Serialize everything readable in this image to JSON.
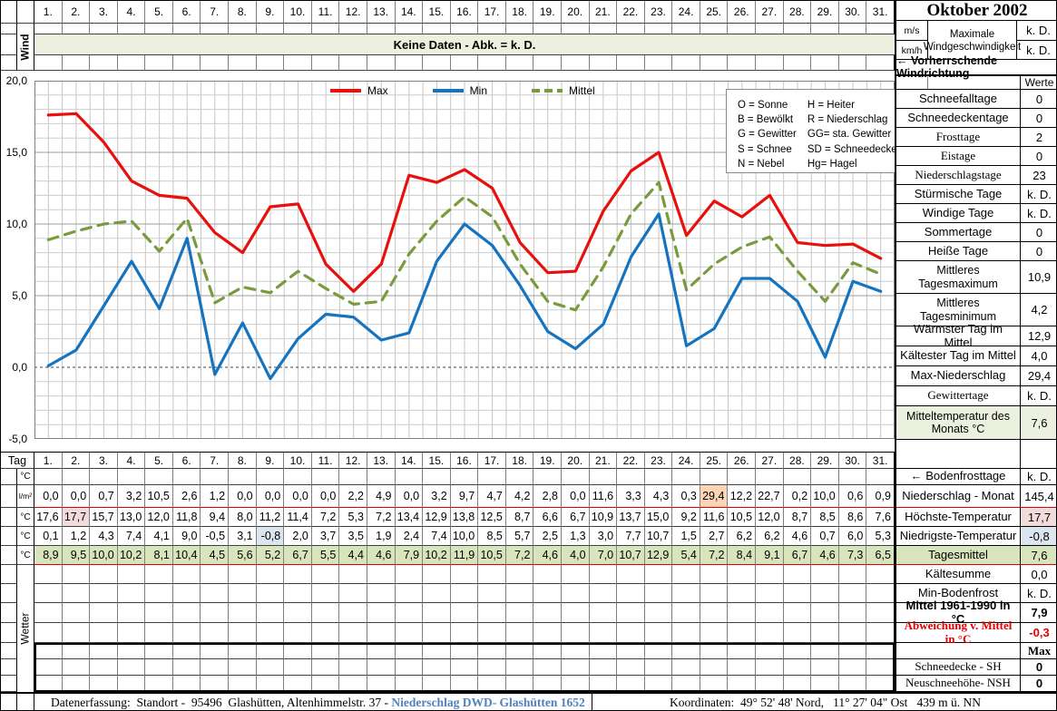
{
  "header": {
    "title": "Oktober 2002",
    "days": [
      "1.",
      "2.",
      "3.",
      "4.",
      "5.",
      "6.",
      "7.",
      "8.",
      "9.",
      "10.",
      "11.",
      "12.",
      "13.",
      "14.",
      "15.",
      "16.",
      "17.",
      "18.",
      "19.",
      "20.",
      "21.",
      "22.",
      "23.",
      "24.",
      "25.",
      "26.",
      "27.",
      "28.",
      "29.",
      "30.",
      "31."
    ]
  },
  "wind_section": {
    "label": "Wind",
    "banner": "Keine Daten - Abk. = k. D.",
    "unit_ms": "m/s",
    "unit_kmh": "km/h",
    "max_wind_label_1": "Maximale",
    "max_wind_label_2": "Windgeschwindigkeit",
    "max_wind_ms": "k. D.",
    "max_wind_kmh": "k. D.",
    "direction_label": "← Vorherrschende Windrichtung"
  },
  "chart_data": {
    "type": "line",
    "x": [
      1,
      2,
      3,
      4,
      5,
      6,
      7,
      8,
      9,
      10,
      11,
      12,
      13,
      14,
      15,
      16,
      17,
      18,
      19,
      20,
      21,
      22,
      23,
      24,
      25,
      26,
      27,
      28,
      29,
      30,
      31
    ],
    "series": [
      {
        "name": "Max",
        "color": "#e8100c",
        "dashed": false,
        "values": [
          17.6,
          17.7,
          15.7,
          13.0,
          12.0,
          11.8,
          9.4,
          8.0,
          11.2,
          11.4,
          7.2,
          5.3,
          7.2,
          13.4,
          12.9,
          13.8,
          12.5,
          8.7,
          6.6,
          6.7,
          10.9,
          13.7,
          15.0,
          9.2,
          11.6,
          10.5,
          12.0,
          8.7,
          8.5,
          8.6,
          7.6
        ]
      },
      {
        "name": "Min",
        "color": "#1673be",
        "dashed": false,
        "values": [
          0.1,
          1.2,
          4.3,
          7.4,
          4.1,
          9.0,
          -0.5,
          3.1,
          -0.8,
          2.0,
          3.7,
          3.5,
          1.9,
          2.4,
          7.4,
          10.0,
          8.5,
          5.7,
          2.5,
          1.3,
          3.0,
          7.7,
          10.7,
          1.5,
          2.7,
          6.2,
          6.2,
          4.6,
          0.7,
          6.0,
          5.3
        ]
      },
      {
        "name": "Mittel",
        "color": "#7a9b3d",
        "dashed": true,
        "values": [
          8.9,
          9.5,
          10.0,
          10.2,
          8.1,
          10.4,
          4.5,
          5.6,
          5.2,
          6.7,
          5.5,
          4.4,
          4.6,
          7.9,
          10.2,
          11.9,
          10.5,
          7.2,
          4.6,
          4.0,
          7.0,
          10.7,
          12.9,
          5.4,
          7.2,
          8.4,
          9.1,
          6.7,
          4.6,
          7.3,
          6.5
        ]
      }
    ],
    "ylim": [
      -5,
      20
    ],
    "yticks": [
      {
        "label": "20,0",
        "v": 20
      },
      {
        "label": "15,0",
        "v": 15
      },
      {
        "label": "10,0",
        "v": 10
      },
      {
        "label": "5,0",
        "v": 5
      },
      {
        "label": "0,0",
        "v": 0
      },
      {
        "label": "-5,0",
        "v": -5
      }
    ],
    "grid": true,
    "legend_position": "top"
  },
  "weather_legend": {
    "left": [
      "O = Sonne",
      "B = Bewölkt",
      "G = Gewitter",
      "S = Schnee",
      "N = Nebel"
    ],
    "right": [
      "H = Heiter",
      "R = Niederschlag",
      "GG= sta. Gewitter",
      "SD = Schneedecke",
      "Hg= Hagel"
    ]
  },
  "right_panel": {
    "values_header": "Werte",
    "stats_upper": [
      {
        "label": "Schneefalltage",
        "value": "0"
      },
      {
        "label": "Schneedeckentage",
        "value": "0"
      },
      {
        "label": "Frosttage",
        "value": "2",
        "serif": true
      },
      {
        "label": "Eistage",
        "value": "0",
        "serif": true
      },
      {
        "label": "Niederschlagstage",
        "value": "23",
        "serif": true
      },
      {
        "label": "Stürmische Tage",
        "value": "k. D."
      },
      {
        "label": "Windige Tage",
        "value": "k. D."
      },
      {
        "label": "Sommertage",
        "value": "0"
      },
      {
        "label": "Heiße Tage",
        "value": "0"
      },
      {
        "label": "Mittleres Tagesmaximum",
        "value": "10,9",
        "tall": true
      },
      {
        "label": "Mittleres Tagesminimum",
        "value": "4,2",
        "tall": true
      },
      {
        "label": "Wärmster Tag im Mittel",
        "value": "12,9"
      },
      {
        "label": "Kältester Tag im Mittel",
        "value": "4,0"
      },
      {
        "label": "Max-Niederschlag",
        "value": "29,4"
      },
      {
        "label": "Gewittertage",
        "value": "k. D.",
        "serif": true
      },
      {
        "label": "Mitteltemperatur des Monats °C",
        "value": "7,6",
        "tall": true,
        "label_bg": "#ebf1de",
        "value_bg": "#ebf1de"
      }
    ],
    "stats_lower": [
      {
        "label": "← Bodenfrosttage",
        "value": "k. D."
      },
      {
        "label": "Niederschlag - Monat",
        "value": "145,4",
        "redline": true
      },
      {
        "label": "Höchste-Temperatur",
        "value": "17,7",
        "value_bg": "#f2dcdb"
      },
      {
        "label": "Niedrigste-Temperatur",
        "value": "-0,8",
        "value_bg": "#dce6f1"
      },
      {
        "label": "Tagesmittel",
        "value": "7,6",
        "label_bg": "#d7e4bc",
        "value_bg": "#d7e4bc",
        "redline": true
      },
      {
        "label": "Kältesumme",
        "value": "0,0"
      },
      {
        "label": "Min-Bodenfrost",
        "value": "k. D."
      },
      {
        "label": "Mittel 1961-1990 in °C",
        "value": "7,9",
        "bold": true
      },
      {
        "label": "Abweichung v. Mittel in °C",
        "value": "-0,3",
        "serif": true,
        "bold": true,
        "red": true
      },
      {
        "label": "",
        "value": "Max",
        "serif": true,
        "bold": true
      },
      {
        "label": "Schneedecke -  SH",
        "value": "0",
        "serif": true,
        "bold_value": true
      },
      {
        "label": "Neuschneehöhe- NSH",
        "value": "0",
        "serif": true,
        "bold_value": true
      }
    ]
  },
  "table": {
    "day_label": "Tag",
    "unit_temp": "°C",
    "unit_precip": "l/m²",
    "wetter_label": "Wetter",
    "precip": {
      "values": [
        "0,0",
        "0,0",
        "0,7",
        "3,2",
        "10,5",
        "2,6",
        "1,2",
        "0,0",
        "0,0",
        "0,0",
        "0,0",
        "2,2",
        "4,9",
        "0,0",
        "3,2",
        "9,7",
        "4,7",
        "4,2",
        "2,8",
        "0,0",
        "11,6",
        "3,3",
        "4,3",
        "0,3",
        "29,4",
        "12,2",
        "22,7",
        "0,2",
        "10,0",
        "0,6",
        "0,9"
      ],
      "highlight_index": 24,
      "highlight_color": "#fbd5b5"
    },
    "tmax": {
      "values": [
        "17,6",
        "17,7",
        "15,7",
        "13,0",
        "12,0",
        "11,8",
        "9,4",
        "8,0",
        "11,2",
        "11,4",
        "7,2",
        "5,3",
        "7,2",
        "13,4",
        "12,9",
        "13,8",
        "12,5",
        "8,7",
        "6,6",
        "6,7",
        "10,9",
        "13,7",
        "15,0",
        "9,2",
        "11,6",
        "10,5",
        "12,0",
        "8,7",
        "8,5",
        "8,6",
        "7,6"
      ],
      "highlight_index": 1,
      "highlight_color": "#f2dcdb"
    },
    "tmin": {
      "values": [
        "0,1",
        "1,2",
        "4,3",
        "7,4",
        "4,1",
        "9,0",
        "-0,5",
        "3,1",
        "-0,8",
        "2,0",
        "3,7",
        "3,5",
        "1,9",
        "2,4",
        "7,4",
        "10,0",
        "8,5",
        "5,7",
        "2,5",
        "1,3",
        "3,0",
        "7,7",
        "10,7",
        "1,5",
        "2,7",
        "6,2",
        "6,2",
        "4,6",
        "0,7",
        "6,0",
        "5,3"
      ],
      "highlight_index": 8,
      "highlight_color": "#dce6f1"
    },
    "tmittel": {
      "values": [
        "8,9",
        "9,5",
        "10,0",
        "10,2",
        "8,1",
        "10,4",
        "4,5",
        "5,6",
        "5,2",
        "6,7",
        "5,5",
        "4,4",
        "4,6",
        "7,9",
        "10,2",
        "11,9",
        "10,5",
        "7,2",
        "4,6",
        "4,0",
        "7,0",
        "10,7",
        "12,9",
        "5,4",
        "7,2",
        "8,4",
        "9,1",
        "6,7",
        "4,6",
        "7,3",
        "6,5"
      ],
      "row_bg": "#d7e4bc"
    }
  },
  "footer": {
    "left_text": "Datenerfassung:  Standort -  95496  Glashütten, Altenhimmelstr. 37 - ",
    "left_link": "Niederschlag DWD- Glashütten 1652",
    "right_text": "Koordinaten:  49° 52' 48' Nord,   11° 27' 04\" Ost   439 m ü. NN"
  }
}
